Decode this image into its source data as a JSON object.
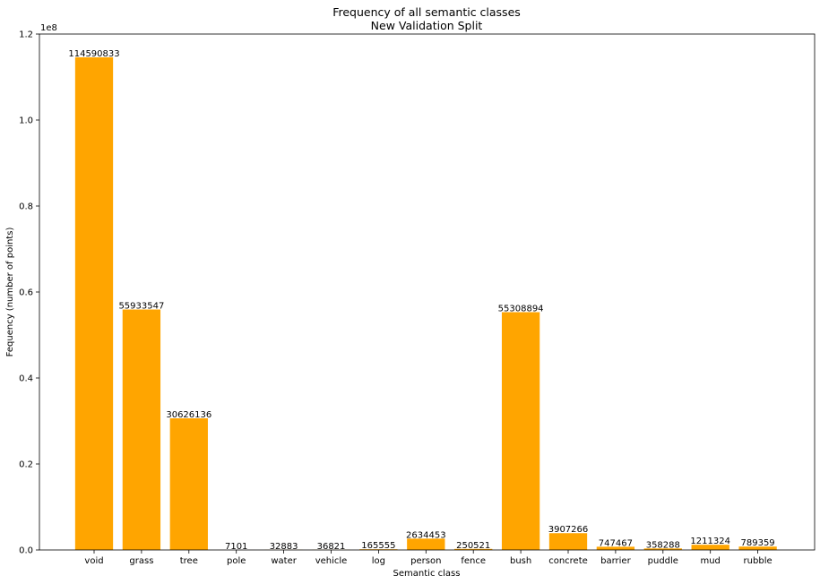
{
  "chart_data": {
    "type": "bar",
    "title": "Frequency of all semantic classes",
    "subtitle": "New Validation Split",
    "xlabel": "Semantic class",
    "ylabel": "Fequency (number of points)",
    "y_offset_text": "1e8",
    "ylim": [
      0,
      120000000
    ],
    "yticks": [
      0,
      20000000,
      40000000,
      60000000,
      80000000,
      100000000,
      120000000
    ],
    "ytick_labels": [
      "0.0",
      "0.2",
      "0.4",
      "0.6",
      "0.8",
      "1.0",
      "1.2"
    ],
    "bar_color": "#FFA500",
    "grid": false,
    "categories": [
      "void",
      "grass",
      "tree",
      "pole",
      "water",
      "vehicle",
      "log",
      "person",
      "fence",
      "bush",
      "concrete",
      "barrier",
      "puddle",
      "mud",
      "rubble"
    ],
    "values": [
      114590833,
      55933547,
      30626136,
      7101,
      32883,
      36821,
      165555,
      2634453,
      250521,
      55308894,
      3907266,
      747467,
      358288,
      1211324,
      789359
    ]
  }
}
